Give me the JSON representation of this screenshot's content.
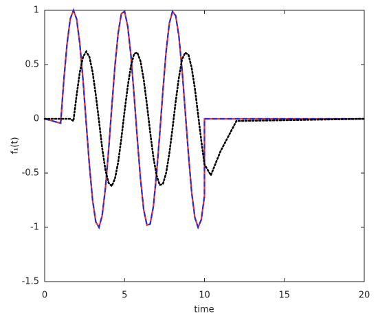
{
  "chart_data": {
    "type": "line",
    "xlabel": "time",
    "ylabel": "f₁(t)",
    "x": [
      0,
      1,
      1.2,
      1.4,
      1.6,
      1.8,
      2,
      2.2,
      2.4,
      2.6,
      2.8,
      3,
      3.2,
      3.4,
      3.6,
      3.8,
      4,
      4.2,
      4.4,
      4.6,
      4.8,
      5,
      5.2,
      5.4,
      5.6,
      5.8,
      6,
      6.2,
      6.4,
      6.6,
      6.8,
      7,
      7.2,
      7.4,
      7.6,
      7.8,
      8,
      8.2,
      8.4,
      8.6,
      8.8,
      9,
      9.2,
      9.4,
      9.6,
      9.8,
      10,
      10,
      10.4,
      11,
      12,
      20
    ],
    "series": [
      {
        "color": "#e8322b",
        "dash": "solid",
        "values": [
          0,
          -0.04,
          0.36,
          0.69,
          0.92,
          1,
          0.92,
          0.69,
          0.36,
          -0.04,
          -0.43,
          -0.75,
          -0.95,
          -1,
          -0.89,
          -0.64,
          -0.29,
          0.11,
          0.49,
          0.79,
          0.97,
          0.99,
          0.85,
          0.58,
          0.21,
          -0.19,
          -0.56,
          -0.84,
          -0.98,
          -0.97,
          -0.81,
          -0.51,
          -0.14,
          0.26,
          0.62,
          0.88,
          0.99,
          0.95,
          0.76,
          0.45,
          0.06,
          -0.33,
          -0.68,
          -0.91,
          -1,
          -0.93,
          -0.71,
          0,
          0,
          0,
          0,
          0
        ]
      },
      {
        "color": "#2a2ad0",
        "dash": "dashed",
        "values": [
          0,
          -0.04,
          0.36,
          0.69,
          0.92,
          1,
          0.92,
          0.69,
          0.36,
          -0.04,
          -0.43,
          -0.75,
          -0.95,
          -1,
          -0.89,
          -0.64,
          -0.29,
          0.11,
          0.49,
          0.79,
          0.97,
          0.99,
          0.85,
          0.58,
          0.21,
          -0.19,
          -0.56,
          -0.84,
          -0.98,
          -0.97,
          -0.81,
          -0.51,
          -0.14,
          0.26,
          0.62,
          0.88,
          0.99,
          0.95,
          0.76,
          0.45,
          0.06,
          -0.33,
          -0.68,
          -0.91,
          -1,
          -0.93,
          -0.71,
          0,
          0,
          0,
          0,
          0
        ]
      },
      {
        "color": "#000000",
        "dash": "dotted",
        "values": [
          0,
          0,
          0,
          0,
          0,
          -0.02,
          0.22,
          0.43,
          0.57,
          0.62,
          0.57,
          0.43,
          0.22,
          -0.02,
          -0.27,
          -0.47,
          -0.59,
          -0.62,
          -0.55,
          -0.4,
          -0.18,
          0.07,
          0.3,
          0.49,
          0.6,
          0.61,
          0.53,
          0.36,
          0.13,
          -0.12,
          -0.35,
          -0.52,
          -0.61,
          -0.6,
          -0.5,
          -0.32,
          -0.09,
          0.16,
          0.38,
          0.55,
          0.61,
          0.59,
          0.47,
          0.28,
          0.04,
          -0.2,
          -0.42,
          -0.42,
          -0.52,
          -0.3,
          -0.02,
          0
        ]
      }
    ],
    "xlim": [
      0,
      20
    ],
    "xticks": [
      0,
      5,
      10,
      15,
      20
    ],
    "ylim": [
      -1.5,
      1
    ],
    "yticks": [
      -1.5,
      -1,
      -0.5,
      0,
      0.5,
      1
    ]
  }
}
